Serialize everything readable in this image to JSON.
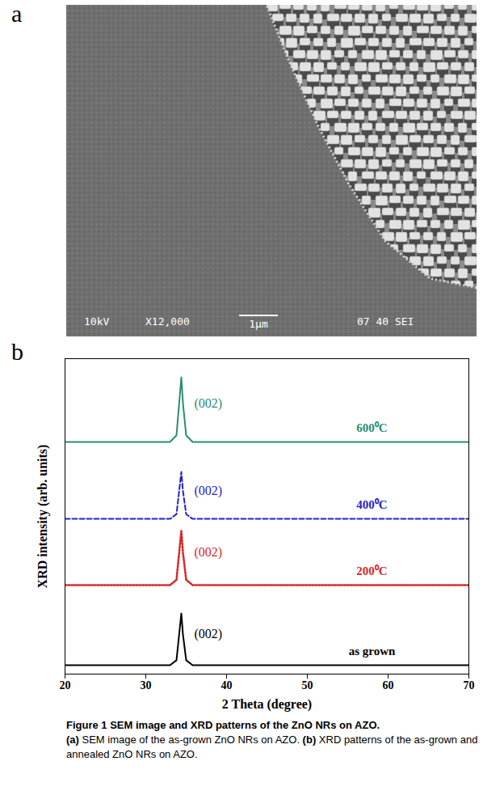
{
  "panels": [
    "a",
    "b"
  ],
  "sem_image": {
    "texts": [
      "10kV",
      "X12,000",
      "1μm",
      "07 40 SEI"
    ]
  },
  "chart_data": {
    "type": "line",
    "xlabel": "2 Theta (degree)",
    "ylabel": "XRD intensity (arb. units)",
    "x": [
      20,
      33,
      33.8,
      34.2,
      34.4,
      34.6,
      35.0,
      35.8,
      70
    ],
    "xlim": [
      20,
      70
    ],
    "xticks": [
      20,
      30,
      40,
      50,
      60,
      70
    ],
    "ylim": [
      0,
      100
    ],
    "tick_labels": "x",
    "grid": false,
    "series": [
      {
        "name": "as grown",
        "peak_label": "(002)",
        "color": "#000000",
        "line_style": "solid",
        "values": [
          2.8,
          2.8,
          4.4,
          14.3,
          19.2,
          12.6,
          4.4,
          2.8,
          2.8
        ]
      },
      {
        "name": "200⁰C",
        "peak_label": "(002)",
        "color": "#d42a2a",
        "line_style": "dotted",
        "values": [
          28.2,
          28.2,
          29.9,
          40.2,
          45.4,
          38.5,
          29.9,
          28.2,
          28.2
        ]
      },
      {
        "name": "400⁰C",
        "peak_label": "(002)",
        "color": "#2424c8",
        "line_style": "dashed",
        "values": [
          49.2,
          49.2,
          50.7,
          59.6,
          64.1,
          58.1,
          50.7,
          49.2,
          49.2
        ]
      },
      {
        "name": "600⁰C",
        "peak_label": "(002)",
        "color": "#2a8c78",
        "line_style": "solid",
        "values": [
          73.6,
          73.6,
          75.7,
          87.9,
          94.1,
          85.9,
          75.7,
          73.6,
          73.6
        ]
      }
    ]
  },
  "caption": {
    "title": "Figure 1 SEM image and XRD patterns of the ZnO NRs on AZO.",
    "parts": [
      {
        "label": "(a)",
        "text": "SEM image of the as-grown ZnO NRs on AZO."
      },
      {
        "label": "(b)",
        "text": "XRD patterns of the as-grown and annealed ZnO NRs on AZO."
      }
    ]
  }
}
